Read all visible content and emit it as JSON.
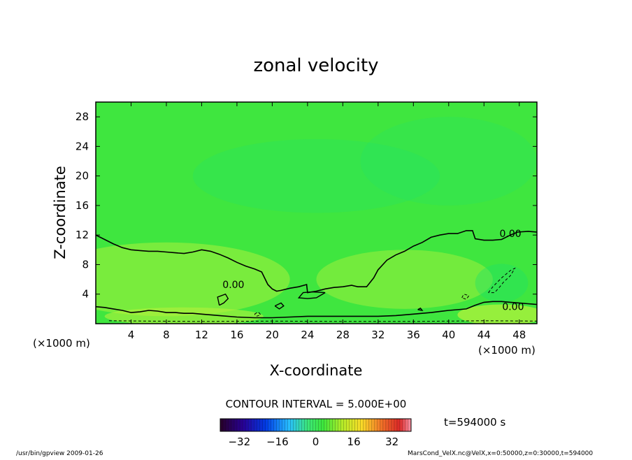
{
  "chart_data": {
    "type": "heatmap",
    "title": "zonal velocity",
    "xlabel": "X-coordinate",
    "ylabel": "Z-coordinate",
    "x_unit_left": "(×1000 m)",
    "x_unit_right": "(×1000 m)",
    "xlim": [
      0,
      50
    ],
    "ylim": [
      0,
      30
    ],
    "x_ticks": [
      4,
      8,
      12,
      16,
      20,
      24,
      28,
      32,
      36,
      40,
      44,
      48
    ],
    "y_ticks": [
      4,
      8,
      12,
      16,
      20,
      24,
      28
    ],
    "contour_interval_text": "CONTOUR INTERVAL = 5.000E+00",
    "time_text": "t=594000 s",
    "colorbar": {
      "ticks": [
        -32,
        -16,
        0,
        16,
        32
      ],
      "range": [
        -40,
        40
      ]
    },
    "contour_labels": [
      {
        "text": "0.00",
        "x": 47,
        "y": 12.2
      },
      {
        "text": "0.00",
        "x": 15.6,
        "y": 5.3
      },
      {
        "text": "0.00",
        "x": 47.3,
        "y": 2.3
      }
    ],
    "zero_contour_main": [
      [
        0,
        12.0
      ],
      [
        1,
        11.4
      ],
      [
        2,
        10.8
      ],
      [
        3,
        10.3
      ],
      [
        4,
        10.0
      ],
      [
        5,
        9.9
      ],
      [
        6,
        9.8
      ],
      [
        7,
        9.8
      ],
      [
        8,
        9.7
      ],
      [
        9,
        9.6
      ],
      [
        10,
        9.5
      ],
      [
        11,
        9.7
      ],
      [
        12,
        10.0
      ],
      [
        13,
        9.8
      ],
      [
        14,
        9.4
      ],
      [
        15,
        8.9
      ],
      [
        16,
        8.3
      ],
      [
        17,
        7.8
      ],
      [
        18,
        7.4
      ],
      [
        18.8,
        7.0
      ],
      [
        19.5,
        5.3
      ],
      [
        20,
        4.7
      ],
      [
        20.5,
        4.4
      ],
      [
        21,
        4.5
      ],
      [
        22,
        4.8
      ],
      [
        23,
        5.0
      ],
      [
        23.9,
        5.3
      ],
      [
        24,
        4.2
      ],
      [
        25,
        4.4
      ],
      [
        26,
        4.7
      ],
      [
        27,
        4.9
      ],
      [
        28,
        5.0
      ],
      [
        29,
        5.2
      ],
      [
        29.7,
        5.0
      ],
      [
        30.7,
        5.0
      ],
      [
        31.5,
        6.2
      ],
      [
        32,
        7.3
      ],
      [
        33,
        8.6
      ],
      [
        34,
        9.3
      ],
      [
        35,
        9.8
      ],
      [
        36,
        10.5
      ],
      [
        37,
        11.0
      ],
      [
        38,
        11.7
      ],
      [
        39,
        12.0
      ],
      [
        40,
        12.2
      ],
      [
        41,
        12.2
      ],
      [
        42,
        12.6
      ],
      [
        42.7,
        12.6
      ],
      [
        43,
        11.5
      ],
      [
        44,
        11.3
      ],
      [
        45,
        11.3
      ],
      [
        46,
        11.4
      ],
      [
        47,
        12.0
      ],
      [
        47.8,
        12.4
      ],
      [
        49,
        12.5
      ],
      [
        50,
        12.4
      ]
    ],
    "zero_contour_bottom": [
      [
        0,
        2.3
      ],
      [
        1,
        2.2
      ],
      [
        2,
        2.0
      ],
      [
        3,
        1.8
      ],
      [
        4,
        1.5
      ],
      [
        5,
        1.6
      ],
      [
        6,
        1.8
      ],
      [
        7,
        1.7
      ],
      [
        8,
        1.5
      ],
      [
        9,
        1.5
      ],
      [
        10,
        1.4
      ],
      [
        11,
        1.4
      ],
      [
        12,
        1.3
      ],
      [
        14,
        1.1
      ],
      [
        16,
        0.9
      ],
      [
        18,
        0.8
      ],
      [
        20,
        0.8
      ],
      [
        22,
        0.9
      ],
      [
        24,
        1.0
      ],
      [
        26,
        1.0
      ],
      [
        28,
        1.0
      ],
      [
        30,
        1.0
      ],
      [
        32,
        1.0
      ],
      [
        34,
        1.1
      ],
      [
        36,
        1.3
      ],
      [
        38,
        1.5
      ],
      [
        40,
        1.8
      ],
      [
        42,
        2.0
      ],
      [
        43,
        2.5
      ],
      [
        44,
        2.9
      ],
      [
        45,
        3.0
      ],
      [
        46,
        3.0
      ],
      [
        47,
        2.9
      ],
      [
        48,
        2.8
      ],
      [
        49,
        2.7
      ],
      [
        50,
        2.6
      ]
    ],
    "zero_contour_islands": [
      [
        [
          26.0,
          4.2
        ],
        [
          25.0,
          3.5
        ],
        [
          24.0,
          3.4
        ],
        [
          23.0,
          3.5
        ],
        [
          23.5,
          4.2
        ],
        [
          24.5,
          4.3
        ],
        [
          26.0,
          4.2
        ]
      ],
      [
        [
          14.0,
          2.5
        ],
        [
          13.8,
          3.6
        ],
        [
          14.7,
          4.0
        ],
        [
          15.0,
          3.4
        ],
        [
          14.5,
          2.8
        ],
        [
          14.0,
          2.5
        ]
      ],
      [
        [
          20.3,
          2.4
        ],
        [
          21.0,
          2.8
        ],
        [
          21.3,
          2.4
        ],
        [
          20.8,
          2.0
        ],
        [
          20.3,
          2.4
        ]
      ],
      [
        [
          36.5,
          1.9
        ],
        [
          36.8,
          2.1
        ],
        [
          37.0,
          1.8
        ],
        [
          36.5,
          1.9
        ]
      ]
    ],
    "negative_contours": [
      [
        [
          44.5,
          4.2
        ],
        [
          45.0,
          5.0
        ],
        [
          46.0,
          6.2
        ],
        [
          47.0,
          7.2
        ],
        [
          47.5,
          7.5
        ],
        [
          47.0,
          6.5
        ],
        [
          46.2,
          5.6
        ],
        [
          45.8,
          5.0
        ],
        [
          45.2,
          4.2
        ],
        [
          44.5,
          4.2
        ]
      ],
      [
        [
          41.5,
          3.5
        ],
        [
          41.7,
          4.0
        ],
        [
          42.3,
          3.8
        ],
        [
          42.0,
          3.3
        ],
        [
          41.5,
          3.5
        ]
      ],
      [
        [
          18.0,
          1.3
        ],
        [
          18.4,
          1.6
        ],
        [
          18.7,
          1.2
        ],
        [
          18.2,
          1.0
        ],
        [
          18.0,
          1.3
        ]
      ],
      [
        [
          1.5,
          0.4
        ],
        [
          6,
          0.35
        ],
        [
          12,
          0.3
        ],
        [
          20,
          0.35
        ],
        [
          28,
          0.3
        ],
        [
          36,
          0.3
        ],
        [
          44,
          0.4
        ],
        [
          50,
          0.35
        ]
      ]
    ],
    "field_shading": [
      {
        "x": 8,
        "y": 6,
        "rx": 14,
        "ry": 5,
        "level": 0.35
      },
      {
        "x": 35,
        "y": 6,
        "rx": 10,
        "ry": 4,
        "level": 0.3
      },
      {
        "x": 46,
        "y": 5.5,
        "rx": 3,
        "ry": 2.6,
        "level": -0.25
      },
      {
        "x": 46,
        "y": 1.2,
        "rx": 5,
        "ry": 1.4,
        "level": 0.6
      },
      {
        "x": 10,
        "y": 1.0,
        "rx": 9,
        "ry": 1.2,
        "level": 0.45
      },
      {
        "x": 25,
        "y": 20,
        "rx": 14,
        "ry": 5,
        "level": -0.12
      },
      {
        "x": 40,
        "y": 22,
        "rx": 10,
        "ry": 6,
        "level": -0.1
      }
    ]
  },
  "footer": {
    "left": "/usr/bin/gpview   2009-01-26",
    "right": "MarsCond_VelX.nc@VelX,x=0:50000,z=0:30000,t=594000"
  }
}
